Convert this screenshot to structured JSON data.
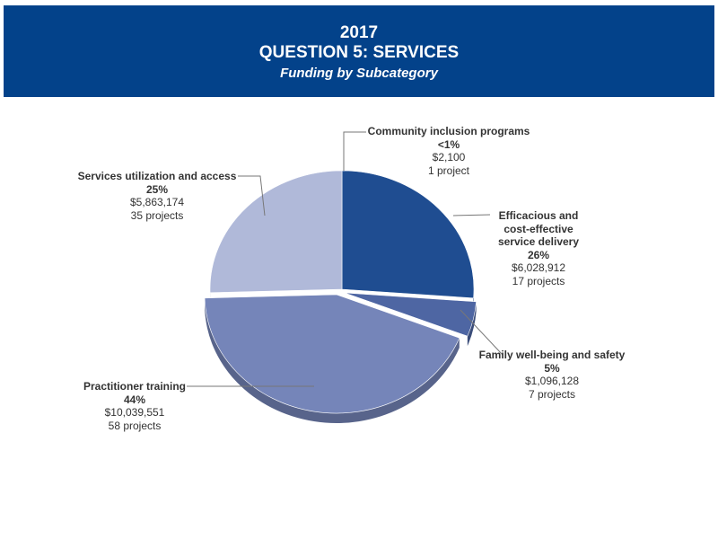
{
  "header": {
    "year": "2017",
    "title": "QUESTION 5: SERVICES",
    "subtitle": "Funding by Subcategory"
  },
  "colors": {
    "header_bg": "#03428a"
  },
  "chart_data": {
    "type": "pie",
    "style": "3d-exploded",
    "title": "QUESTION 5: SERVICES",
    "subtitle": "Funding by Subcategory",
    "slices": [
      {
        "name": "Community inclusion programs",
        "percent": "<1%",
        "value": 2100,
        "amount": "$2,100",
        "projects": "1 project",
        "color": "#f2f3f8"
      },
      {
        "name": "Efficacious and cost-effective service delivery",
        "percent": "26%",
        "value": 6028912,
        "amount": "$6,028,912",
        "projects": "17 projects",
        "color": "#1f4d91"
      },
      {
        "name": "Family well-being and safety",
        "percent": "5%",
        "value": 1096128,
        "amount": "$1,096,128",
        "projects": "7 projects",
        "color": "#4e66a3"
      },
      {
        "name": "Practitioner training",
        "percent": "44%",
        "value": 10039551,
        "amount": "$10,039,551",
        "projects": "58 projects",
        "color": "#7585b9"
      },
      {
        "name": "Services utilization and access",
        "percent": "25%",
        "value": 5863174,
        "amount": "$5,863,174",
        "projects": "35 projects",
        "color": "#b0b9d9"
      }
    ]
  }
}
